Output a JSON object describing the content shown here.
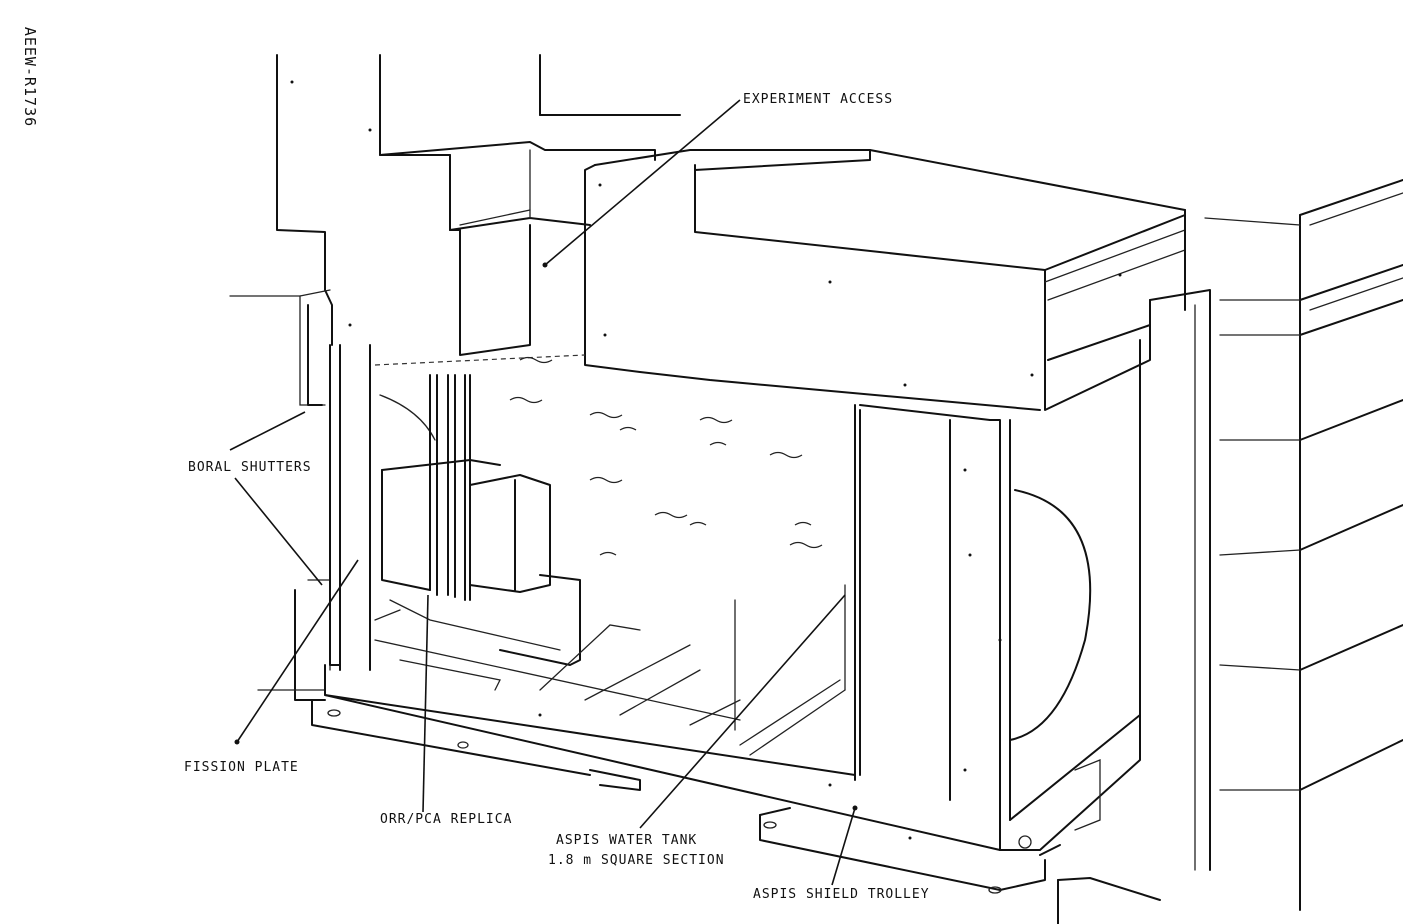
{
  "document_id": "AEEW-R1736",
  "labels": {
    "experiment_access": "EXPERIMENT ACCESS",
    "boral_shutters": "BORAL SHUTTERS",
    "fission_plate": "FISSION PLATE",
    "orr_pca_replica": "ORR/PCA REPLICA",
    "aspis_water_tank": "ASPIS WATER TANK",
    "tank_section": "1.8 m SQUARE SECTION",
    "aspis_shield_trolley": "ASPIS SHIELD TROLLEY"
  }
}
